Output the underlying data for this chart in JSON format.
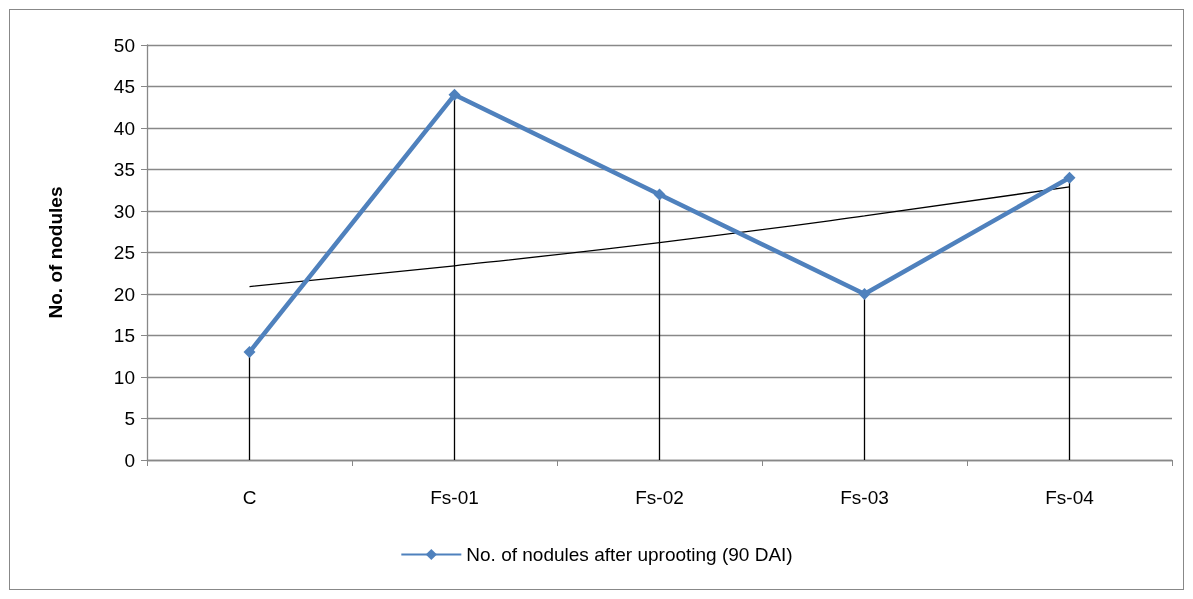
{
  "chart_data": {
    "type": "line",
    "ylabel": "No. of nodules",
    "categories": [
      "C",
      "Fs-01",
      "Fs-02",
      "Fs-03",
      "Fs-04"
    ],
    "series": [
      {
        "name": "No. of nodules after uprooting (90 DAI)",
        "color": "#4f81bd",
        "values": [
          13,
          44,
          32,
          20,
          34
        ],
        "marker": "diamond",
        "errors": [
          [
            0,
            13
          ],
          [
            0,
            44
          ],
          [
            0,
            32
          ],
          [
            0,
            20
          ],
          [
            0,
            34
          ]
        ]
      },
      {
        "type": "line",
        "color": "#000000",
        "marker": "none",
        "values": [
          20.9,
          23.4,
          26.2,
          29.4,
          32.9
        ]
      }
    ],
    "ylim": [
      0,
      50
    ],
    "yticks": [
      0,
      5,
      10,
      15,
      20,
      25,
      30,
      35,
      40,
      45,
      50
    ],
    "grid": "y",
    "legend": "bottom"
  }
}
